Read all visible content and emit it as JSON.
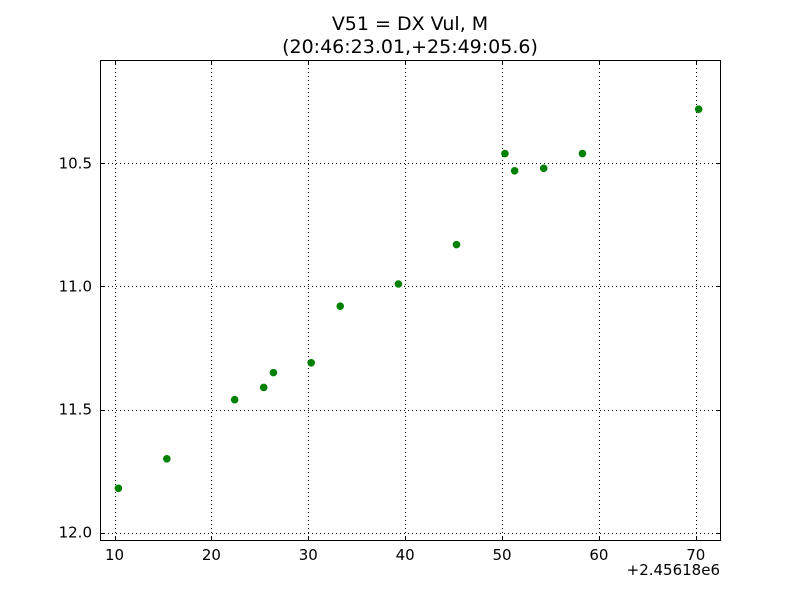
{
  "chart_data": {
    "type": "scatter",
    "title_line1": "V51 = DX Vul, M",
    "title_line2": "(20:46:23.01,+25:49:05.6)",
    "xlabel": "",
    "ylabel": "",
    "x_offset_label": "+2.45618e6",
    "xlim": [
      8.5,
      72.5
    ],
    "ylim": [
      12.03,
      10.08
    ],
    "y_inverted": true,
    "grid": true,
    "marker_color": "#008000",
    "x_ticks": [
      10,
      20,
      30,
      40,
      50,
      60,
      70
    ],
    "x_tick_labels": [
      "10",
      "20",
      "30",
      "40",
      "50",
      "60",
      "70"
    ],
    "y_ticks": [
      10.5,
      11.0,
      11.5,
      12.0
    ],
    "y_tick_labels": [
      "10.5",
      "11.0",
      "11.5",
      "12.0"
    ],
    "points": [
      {
        "x": 10.4,
        "y": 11.82
      },
      {
        "x": 15.4,
        "y": 11.7
      },
      {
        "x": 22.4,
        "y": 11.46
      },
      {
        "x": 25.4,
        "y": 11.41
      },
      {
        "x": 26.4,
        "y": 11.35
      },
      {
        "x": 30.3,
        "y": 11.31
      },
      {
        "x": 33.3,
        "y": 11.08
      },
      {
        "x": 39.3,
        "y": 10.99
      },
      {
        "x": 45.3,
        "y": 10.83
      },
      {
        "x": 50.3,
        "y": 10.46
      },
      {
        "x": 51.3,
        "y": 10.53
      },
      {
        "x": 54.3,
        "y": 10.52
      },
      {
        "x": 58.3,
        "y": 10.46
      },
      {
        "x": 70.3,
        "y": 10.28
      }
    ]
  }
}
